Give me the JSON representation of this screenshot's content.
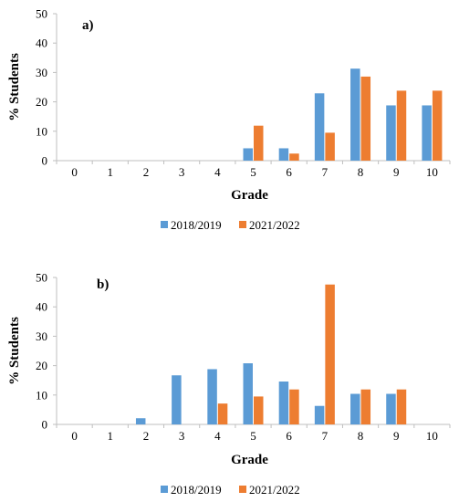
{
  "colors": {
    "series1": "#5b9bd5",
    "series2": "#ed7d31",
    "axis": "#bfbfbf"
  },
  "chart_data": [
    {
      "type": "bar",
      "panel_label": "a)",
      "categories": [
        "0",
        "1",
        "2",
        "3",
        "4",
        "5",
        "6",
        "7",
        "8",
        "9",
        "10"
      ],
      "xlabel": "Grade",
      "ylabel": "% Students",
      "ylim": [
        0,
        50
      ],
      "yticks": [
        "0",
        "10",
        "20",
        "30",
        "40",
        "50"
      ],
      "grid": false,
      "legend_position": "bottom",
      "series": [
        {
          "name": "2018/2019",
          "values": [
            0,
            0,
            0,
            0,
            0,
            4.2,
            4.2,
            22.9,
            31.3,
            18.8,
            18.8
          ]
        },
        {
          "name": "2021/2022",
          "values": [
            0,
            0,
            0,
            0,
            0,
            11.9,
            2.4,
            9.5,
            28.6,
            23.8,
            23.8
          ]
        }
      ]
    },
    {
      "type": "bar",
      "panel_label": "b)",
      "categories": [
        "0",
        "1",
        "2",
        "3",
        "4",
        "5",
        "6",
        "7",
        "8",
        "9",
        "10"
      ],
      "xlabel": "Grade",
      "ylabel": "% Students",
      "ylim": [
        0,
        50
      ],
      "yticks": [
        "0",
        "10",
        "20",
        "30",
        "40",
        "50"
      ],
      "grid": false,
      "legend_position": "bottom",
      "series": [
        {
          "name": "2018/2019",
          "values": [
            0,
            0,
            2.1,
            16.7,
            18.8,
            20.8,
            14.6,
            6.3,
            10.4,
            10.4,
            0
          ]
        },
        {
          "name": "2021/2022",
          "values": [
            0,
            0,
            0,
            0,
            7.1,
            9.5,
            11.9,
            47.6,
            11.9,
            11.9,
            0
          ]
        }
      ]
    }
  ]
}
